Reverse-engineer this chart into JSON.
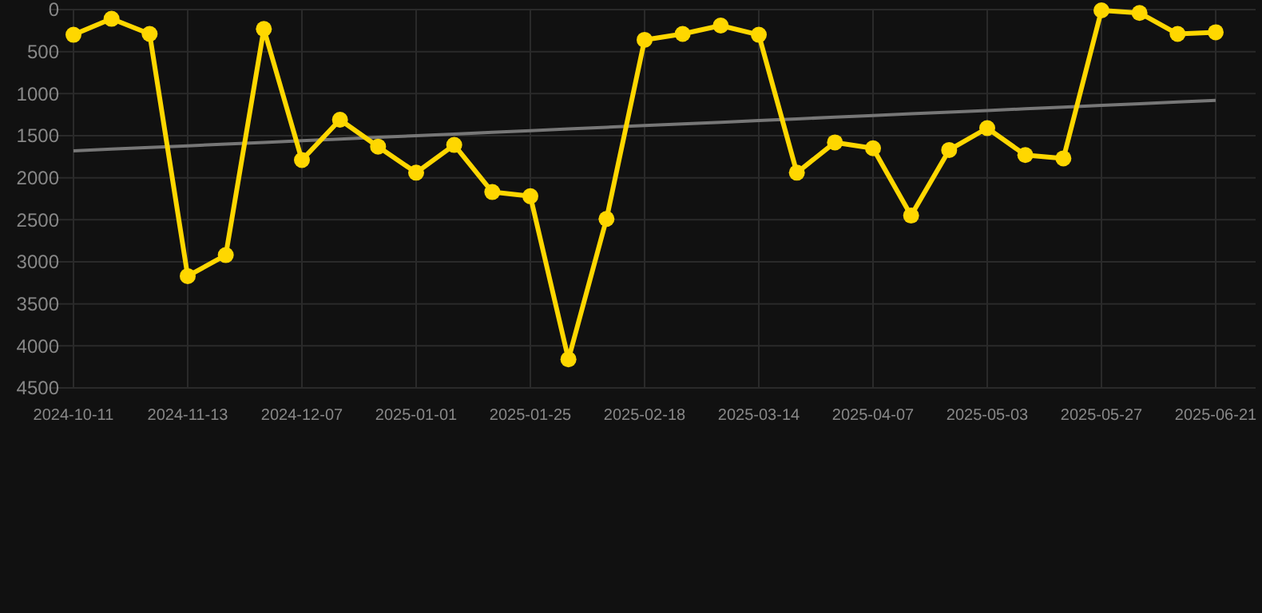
{
  "chart_data": {
    "type": "line",
    "categories": [
      "2024-10-11",
      null,
      null,
      "2024-11-13",
      null,
      null,
      "2024-12-07",
      null,
      null,
      "2025-01-01",
      null,
      null,
      "2025-01-25",
      null,
      null,
      "2025-02-18",
      null,
      null,
      "2025-03-14",
      null,
      null,
      "2025-04-07",
      null,
      null,
      "2025-05-03",
      null,
      null,
      "2025-05-27",
      null,
      null,
      "2025-06-21"
    ],
    "series": [
      {
        "color": "#ffd700",
        "marker": "circle",
        "values": [
          300,
          110,
          290,
          3170,
          2920,
          230,
          1790,
          1310,
          1630,
          1940,
          1610,
          2170,
          2220,
          4160,
          2490,
          360,
          290,
          190,
          300,
          1940,
          1580,
          1650,
          2450,
          1670,
          1410,
          1730,
          1770,
          10,
          40,
          290,
          270
        ]
      },
      {
        "type": "line",
        "color": "#777777",
        "marker": "none",
        "values": [
          1680,
          1660,
          1640,
          1620,
          1600,
          1580,
          1560,
          1540,
          1520,
          1500,
          1480,
          1460,
          1440,
          1420,
          1400,
          1380,
          1360,
          1340,
          1320,
          1300,
          1280,
          1260,
          1240,
          1220,
          1200,
          1180,
          1160,
          1140,
          1120,
          1100,
          1080
        ]
      }
    ],
    "ylim": [
      4500,
      0
    ],
    "yticks": [
      0,
      500,
      1000,
      1500,
      2000,
      2500,
      3000,
      3500,
      4000,
      4500
    ],
    "grid": true
  }
}
